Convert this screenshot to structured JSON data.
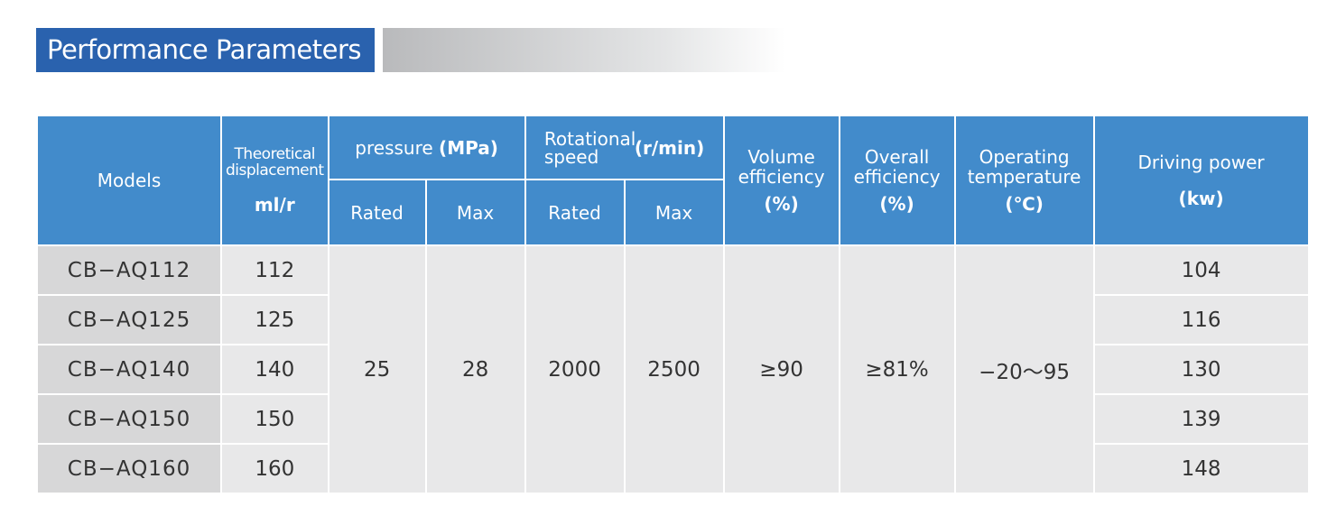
{
  "title": "Performance Parameters",
  "colors": {
    "title_blue": "#2a62ae",
    "header_blue": "#428bcb",
    "model_cell": "#d7d7d8",
    "cell": "#e8e8e9"
  },
  "headers": {
    "models": "Models",
    "displacement": "Theoretical displacement",
    "displacement_unit": "ml/r",
    "pressure": "pressure",
    "pressure_unit": "(MPa)",
    "speed": "Rotational speed",
    "speed_unit": "(r/min)",
    "rated": "Rated",
    "max": "Max",
    "volume_eff": "Volume efficiency",
    "volume_eff_unit": "(%)",
    "overall_eff": "Overall efficiency",
    "overall_eff_unit": "(%)",
    "temp": "Operating temperature",
    "temp_unit": "(℃)",
    "power": "Driving power",
    "power_unit": "(kw)"
  },
  "shared": {
    "pressure_rated": "25",
    "pressure_max": "28",
    "speed_rated": "2000",
    "speed_max": "2500",
    "volume_eff": "≥90",
    "overall_eff": "≥81%",
    "temp": "−20～95"
  },
  "rows": [
    {
      "model": "CB−AQ112",
      "displacement": "112",
      "power": "104"
    },
    {
      "model": "CB−AQ125",
      "displacement": "125",
      "power": "116"
    },
    {
      "model": "CB−AQ140",
      "displacement": "140",
      "power": "130"
    },
    {
      "model": "CB−AQ150",
      "displacement": "150",
      "power": "139"
    },
    {
      "model": "CB−AQ160",
      "displacement": "160",
      "power": "148"
    }
  ]
}
